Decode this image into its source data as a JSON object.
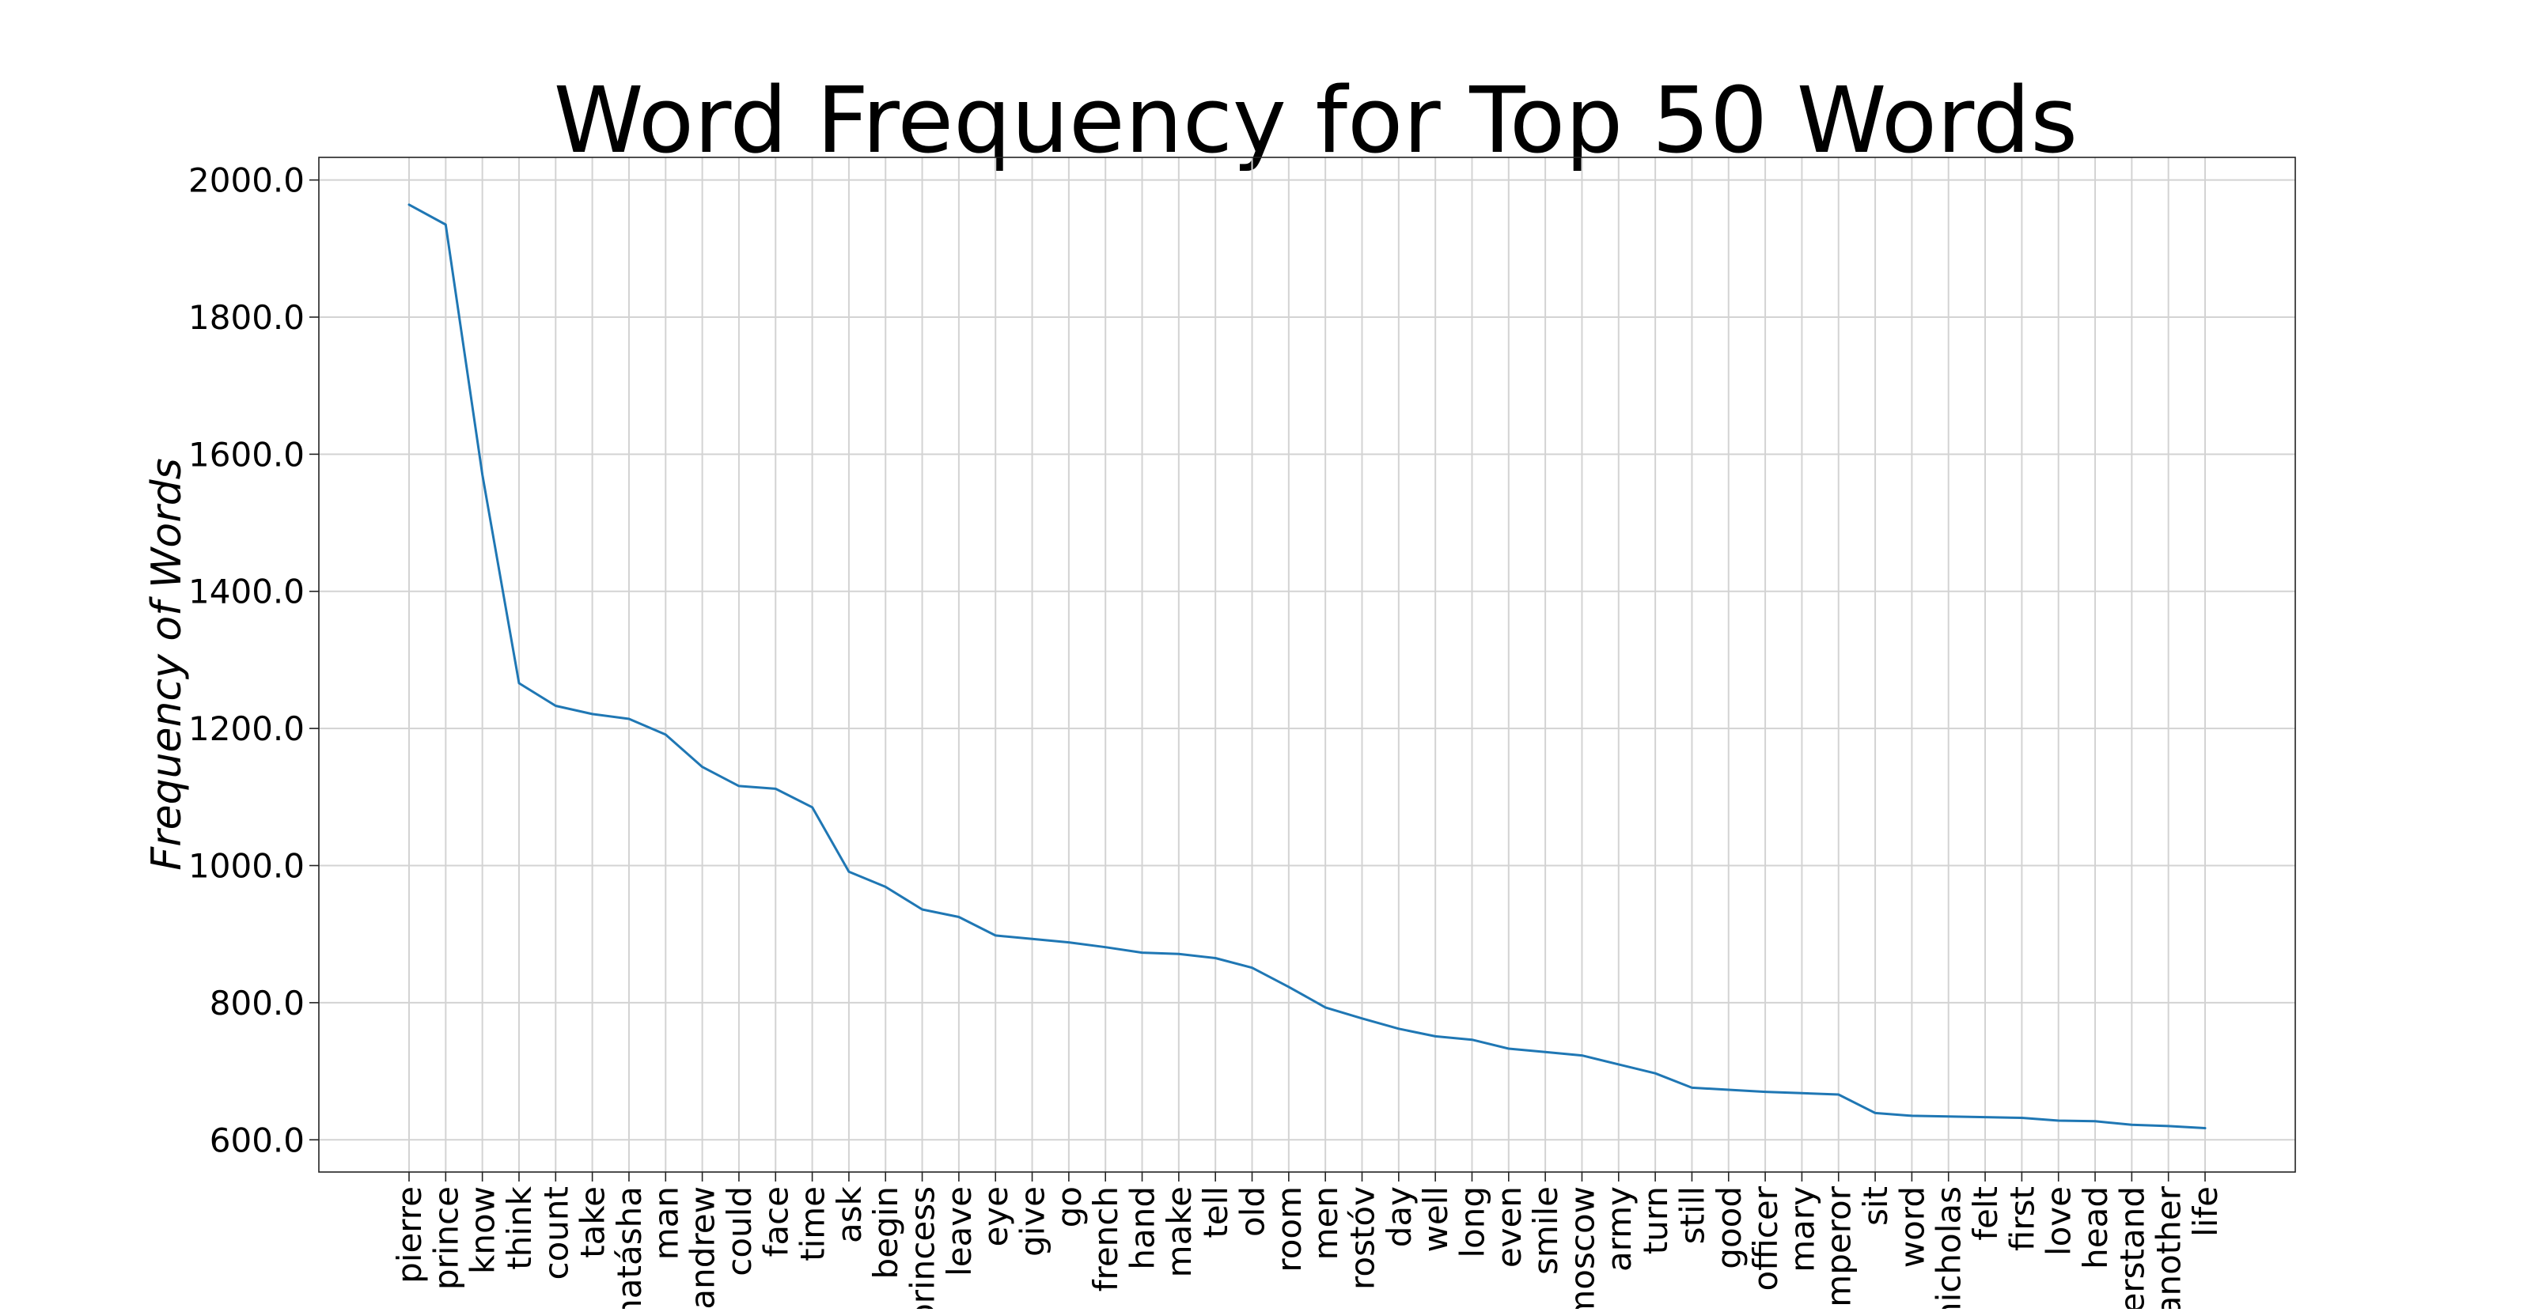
{
  "chart_data": {
    "type": "line",
    "title": "Word Frequency for Top 50 Words",
    "xlabel": "",
    "ylabel": "Frequency of Words",
    "ylim": [
      553,
      2033
    ],
    "yticks": [
      600,
      800,
      1000,
      1200,
      1400,
      1600,
      1800,
      2000
    ],
    "ytick_labels": [
      "600.0",
      "800.0",
      "1000.0",
      "1200.0",
      "1400.0",
      "1600.0",
      "1800.0",
      "2000.0"
    ],
    "grid": true,
    "categories": [
      "pierre",
      "prince",
      "know",
      "think",
      "count",
      "take",
      "natásha",
      "man",
      "andrew",
      "could",
      "face",
      "time",
      "ask",
      "begin",
      "princess",
      "leave",
      "eye",
      "give",
      "go",
      "french",
      "hand",
      "make",
      "tell",
      "old",
      "room",
      "men",
      "rostóv",
      "day",
      "well",
      "long",
      "even",
      "smile",
      "moscow",
      "army",
      "turn",
      "still",
      "good",
      "officer",
      "mary",
      "emperor",
      "sit",
      "word",
      "nicholas",
      "felt",
      "first",
      "love",
      "head",
      "understand",
      "another",
      "life"
    ],
    "series": [
      {
        "values": [
          1964,
          1935,
          1570,
          1266,
          1233,
          1221,
          1214,
          1191,
          1144,
          1116,
          1112,
          1085,
          991,
          969,
          936,
          925,
          898,
          893,
          888,
          881,
          873,
          871,
          865,
          851,
          823,
          793,
          777,
          762,
          751,
          746,
          733,
          728,
          723,
          710,
          697,
          676,
          673,
          670,
          668,
          666,
          639,
          635,
          634,
          633,
          632,
          628,
          627,
          622,
          620,
          617
        ],
        "color": "#1f77b4"
      }
    ]
  }
}
